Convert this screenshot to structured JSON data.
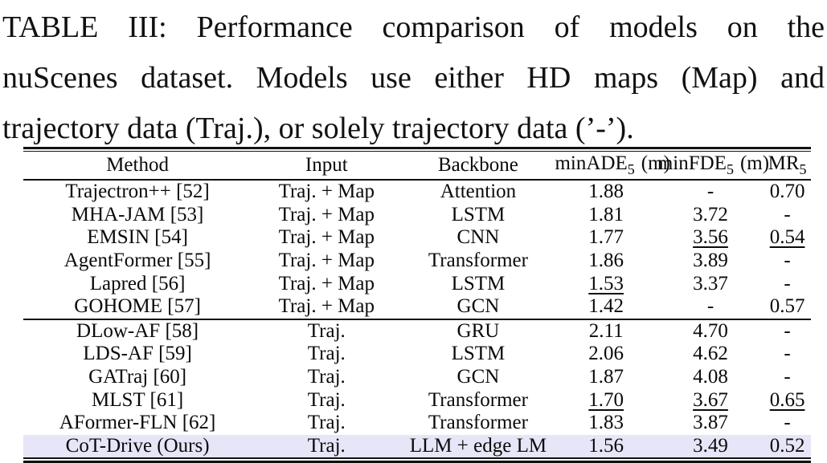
{
  "caption": {
    "line1": "TABLE III: Performance comparison of models on the",
    "line2": "nuScenes dataset. Models use either HD maps (Map) and",
    "line3": "trajectory data (Traj.), or solely trajectory data (’-’)."
  },
  "table": {
    "highlight_color": "#e6e6f8",
    "rule_color": "#111111",
    "columns": [
      {
        "label": "Method"
      },
      {
        "label": "Input"
      },
      {
        "label": "Backbone"
      },
      {
        "base": "minADE",
        "sub": "5",
        "unit": "(m)"
      },
      {
        "base": "minFDE",
        "sub": "5",
        "unit": "(m)"
      },
      {
        "base": "MR",
        "sub": "5",
        "unit": ""
      }
    ],
    "rows": [
      {
        "method": "Trajectron++ [52]",
        "input": "Traj. + Map",
        "backbone": "Attention",
        "ade": "1.88",
        "fde": "-",
        "mr": "0.70"
      },
      {
        "method": "MHA-JAM [53]",
        "input": "Traj. + Map",
        "backbone": "LSTM",
        "ade": "1.81",
        "fde": "3.72",
        "mr": "-"
      },
      {
        "method": "EMSIN [54]",
        "input": "Traj. + Map",
        "backbone": "CNN",
        "ade": "1.77",
        "fde": "3.56",
        "mr": "0.54"
      },
      {
        "method": "AgentFormer [55]",
        "input": "Traj. + Map",
        "backbone": "Transformer",
        "ade": "1.86",
        "fde": "3.89",
        "mr": "-"
      },
      {
        "method": "Lapred [56]",
        "input": "Traj. + Map",
        "backbone": "LSTM",
        "ade": "1.53",
        "fde": "3.37",
        "mr": "-"
      },
      {
        "method": "GOHOME [57]",
        "input": "Traj. + Map",
        "backbone": "GCN",
        "ade": "1.42",
        "fde": "-",
        "mr": "0.57"
      },
      {
        "method": "DLow-AF [58]",
        "input": "Traj.",
        "backbone": "GRU",
        "ade": "2.11",
        "fde": "4.70",
        "mr": "-"
      },
      {
        "method": "LDS-AF [59]",
        "input": "Traj.",
        "backbone": "LSTM",
        "ade": "2.06",
        "fde": "4.62",
        "mr": "-"
      },
      {
        "method": "GATraj [60]",
        "input": "Traj.",
        "backbone": "GCN",
        "ade": "1.87",
        "fde": "4.08",
        "mr": "-"
      },
      {
        "method": "MLST [61]",
        "input": "Traj.",
        "backbone": "Transformer",
        "ade": "1.70",
        "fde": "3.67",
        "mr": "0.65"
      },
      {
        "method": "AFormer-FLN [62]",
        "input": "Traj.",
        "backbone": "Transformer",
        "ade": "1.83",
        "fde": "3.87",
        "mr": "-"
      },
      {
        "method": "CoT-Drive (Ours)",
        "input": "Traj.",
        "backbone": "LLM + edge LM",
        "ade": "1.56",
        "fde": "3.49",
        "mr": "0.52"
      }
    ]
  }
}
